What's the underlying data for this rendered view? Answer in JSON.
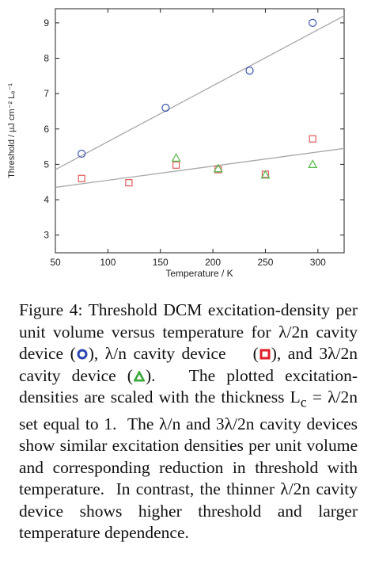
{
  "chart_data": {
    "type": "scatter",
    "xlabel": "Temperature / K",
    "ylabel": "Threshold / µJ cm⁻² Lₑ⁻¹",
    "xlim": [
      50,
      325
    ],
    "ylim": [
      2.5,
      9.4
    ],
    "xticks": [
      50,
      100,
      150,
      200,
      250,
      300
    ],
    "yticks": [
      3,
      4,
      5,
      6,
      7,
      8,
      9
    ],
    "grid": false,
    "series": [
      {
        "marker": "circle",
        "color": "#3b55b0",
        "x": [
          75,
          155,
          235,
          295
        ],
        "y": [
          5.3,
          6.6,
          7.65,
          9.0
        ]
      },
      {
        "marker": "square",
        "color": "#e05a5a",
        "x": [
          75,
          120,
          165,
          205,
          250,
          295
        ],
        "y": [
          4.6,
          4.48,
          4.98,
          4.85,
          4.72,
          5.72
        ]
      },
      {
        "marker": "triangle",
        "color": "#55b84a",
        "x": [
          165,
          205,
          250,
          295
        ],
        "y": [
          5.18,
          4.88,
          4.7,
          5.0
        ]
      }
    ],
    "fit_lines": [
      {
        "color": "#a8a8a8",
        "x": [
          50,
          325
        ],
        "y": [
          4.85,
          9.2
        ]
      },
      {
        "color": "#a8a8a8",
        "x": [
          50,
          325
        ],
        "y": [
          4.35,
          5.45
        ]
      }
    ]
  },
  "caption": {
    "p1": "Figure 4: Threshold DCM excitation-density per unit volume versus temperature for λ/2n cavity device (",
    "p2": "), λ/n cavity device    (",
    "p3": "), and 3λ/2n cavity device (",
    "p4": ").   The plotted excitation-densities are scaled with the thickness L",
    "sub": "c",
    "p5": " = λ/2n set equal to 1.  The λ/n and 3λ/2n cavity devices show similar excitation densities per unit volume and corresponding reduction in threshold with temperature.  In contrast, the thinner λ/2n cavity device shows higher threshold and larger temperature dependence."
  }
}
